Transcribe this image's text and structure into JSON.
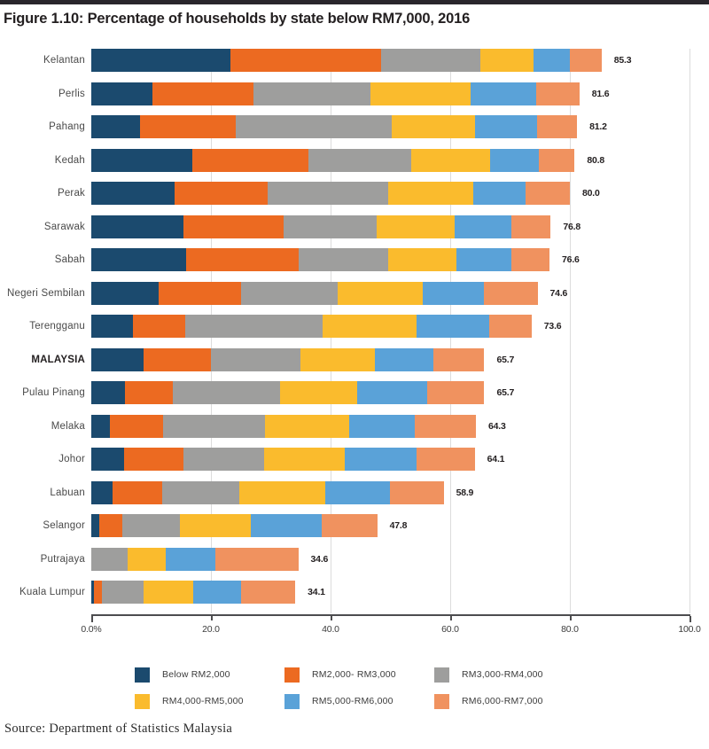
{
  "title": "Figure 1.10: Percentage of households by state below RM7,000, 2016",
  "source": "Source: Department of Statistics Malaysia",
  "colors": {
    "navy": "#1b4a6e",
    "orange": "#ec6a21",
    "gray": "#9e9e9d",
    "yellow": "#fabb2d",
    "light_blue": "#5aa2d8",
    "salmon": "#f0925f",
    "gridline": "#dcdcdc",
    "axis": "#4d4d4f",
    "top_strip": "#29262c"
  },
  "chart_data": {
    "type": "bar",
    "orientation": "horizontal",
    "stacked": true,
    "grid": "vertical",
    "legend_position": "bottom",
    "xlim": [
      0,
      100
    ],
    "emphasis_category": "MALAYSIA",
    "categories": [
      "Kelantan",
      "Perlis",
      "Pahang",
      "Kedah",
      "Perak",
      "Sarawak",
      "Sabah",
      "Negeri Sembilan",
      "Terengganu",
      "MALAYSIA",
      "Pulau Pinang",
      "Melaka",
      "Johor",
      "Labuan",
      "Selangor",
      "Putrajaya",
      "Kuala Lumpur"
    ],
    "totals": [
      "85.3",
      "81.6",
      "81.2",
      "80.8",
      "80.0",
      "76.8",
      "76.6",
      "74.6",
      "73.6",
      "65.7",
      "65.7",
      "64.3",
      "64.1",
      "58.9",
      "47.8",
      "34.6",
      "34.1"
    ],
    "series": [
      {
        "name": "Below RM2,000",
        "color": "#1b4a6e",
        "values": [
          23.2,
          10.2,
          8.2,
          16.9,
          13.9,
          15.4,
          15.9,
          11.2,
          7.0,
          8.7,
          5.6,
          3.1,
          5.5,
          3.6,
          1.4,
          0,
          0.4
        ]
      },
      {
        "name": "RM2,000- RM3,000",
        "color": "#ec6a21",
        "values": [
          25.2,
          16.9,
          16.0,
          19.4,
          15.6,
          16.7,
          18.7,
          13.8,
          8.7,
          11.3,
          8.0,
          8.9,
          9.9,
          8.3,
          3.8,
          0,
          1.4
        ]
      },
      {
        "name": "RM3,000-RM4,000",
        "color": "#9e9e9d",
        "values": [
          16.6,
          19.5,
          26.0,
          17.2,
          20.1,
          15.6,
          15.1,
          16.2,
          22.9,
          14.9,
          18.0,
          17.0,
          13.5,
          12.9,
          9.6,
          6.0,
          6.9
        ]
      },
      {
        "name": "RM4,000-RM5,000",
        "color": "#fabb2d",
        "values": [
          9.0,
          16.8,
          14.0,
          13.2,
          14.2,
          13.0,
          11.3,
          14.2,
          15.8,
          12.5,
          12.8,
          14.1,
          13.4,
          14.3,
          11.8,
          6.4,
          8.4
        ]
      },
      {
        "name": "RM5,000-RM6,000",
        "color": "#5aa2d8",
        "values": [
          6.0,
          11.0,
          10.3,
          8.1,
          8.8,
          9.5,
          9.3,
          10.3,
          12.1,
          9.8,
          11.8,
          11.0,
          12.0,
          10.8,
          11.9,
          8.3,
          8.0
        ]
      },
      {
        "name": "RM6,000-RM7,000",
        "color": "#f0925f",
        "values": [
          5.3,
          7.2,
          6.7,
          6.0,
          7.4,
          6.6,
          6.3,
          8.9,
          7.1,
          8.5,
          9.5,
          10.2,
          9.8,
          9.0,
          9.3,
          13.9,
          9.0
        ]
      }
    ],
    "x_ticks": [
      {
        "value": 0,
        "label": "0.0%"
      },
      {
        "value": 20,
        "label": "20.0"
      },
      {
        "value": 40,
        "label": "40.0"
      },
      {
        "value": 60,
        "label": "60.0"
      },
      {
        "value": 80,
        "label": "80.0"
      },
      {
        "value": 100,
        "label": "100.0"
      }
    ],
    "grid_values": [
      20,
      40,
      60,
      80,
      100
    ]
  }
}
